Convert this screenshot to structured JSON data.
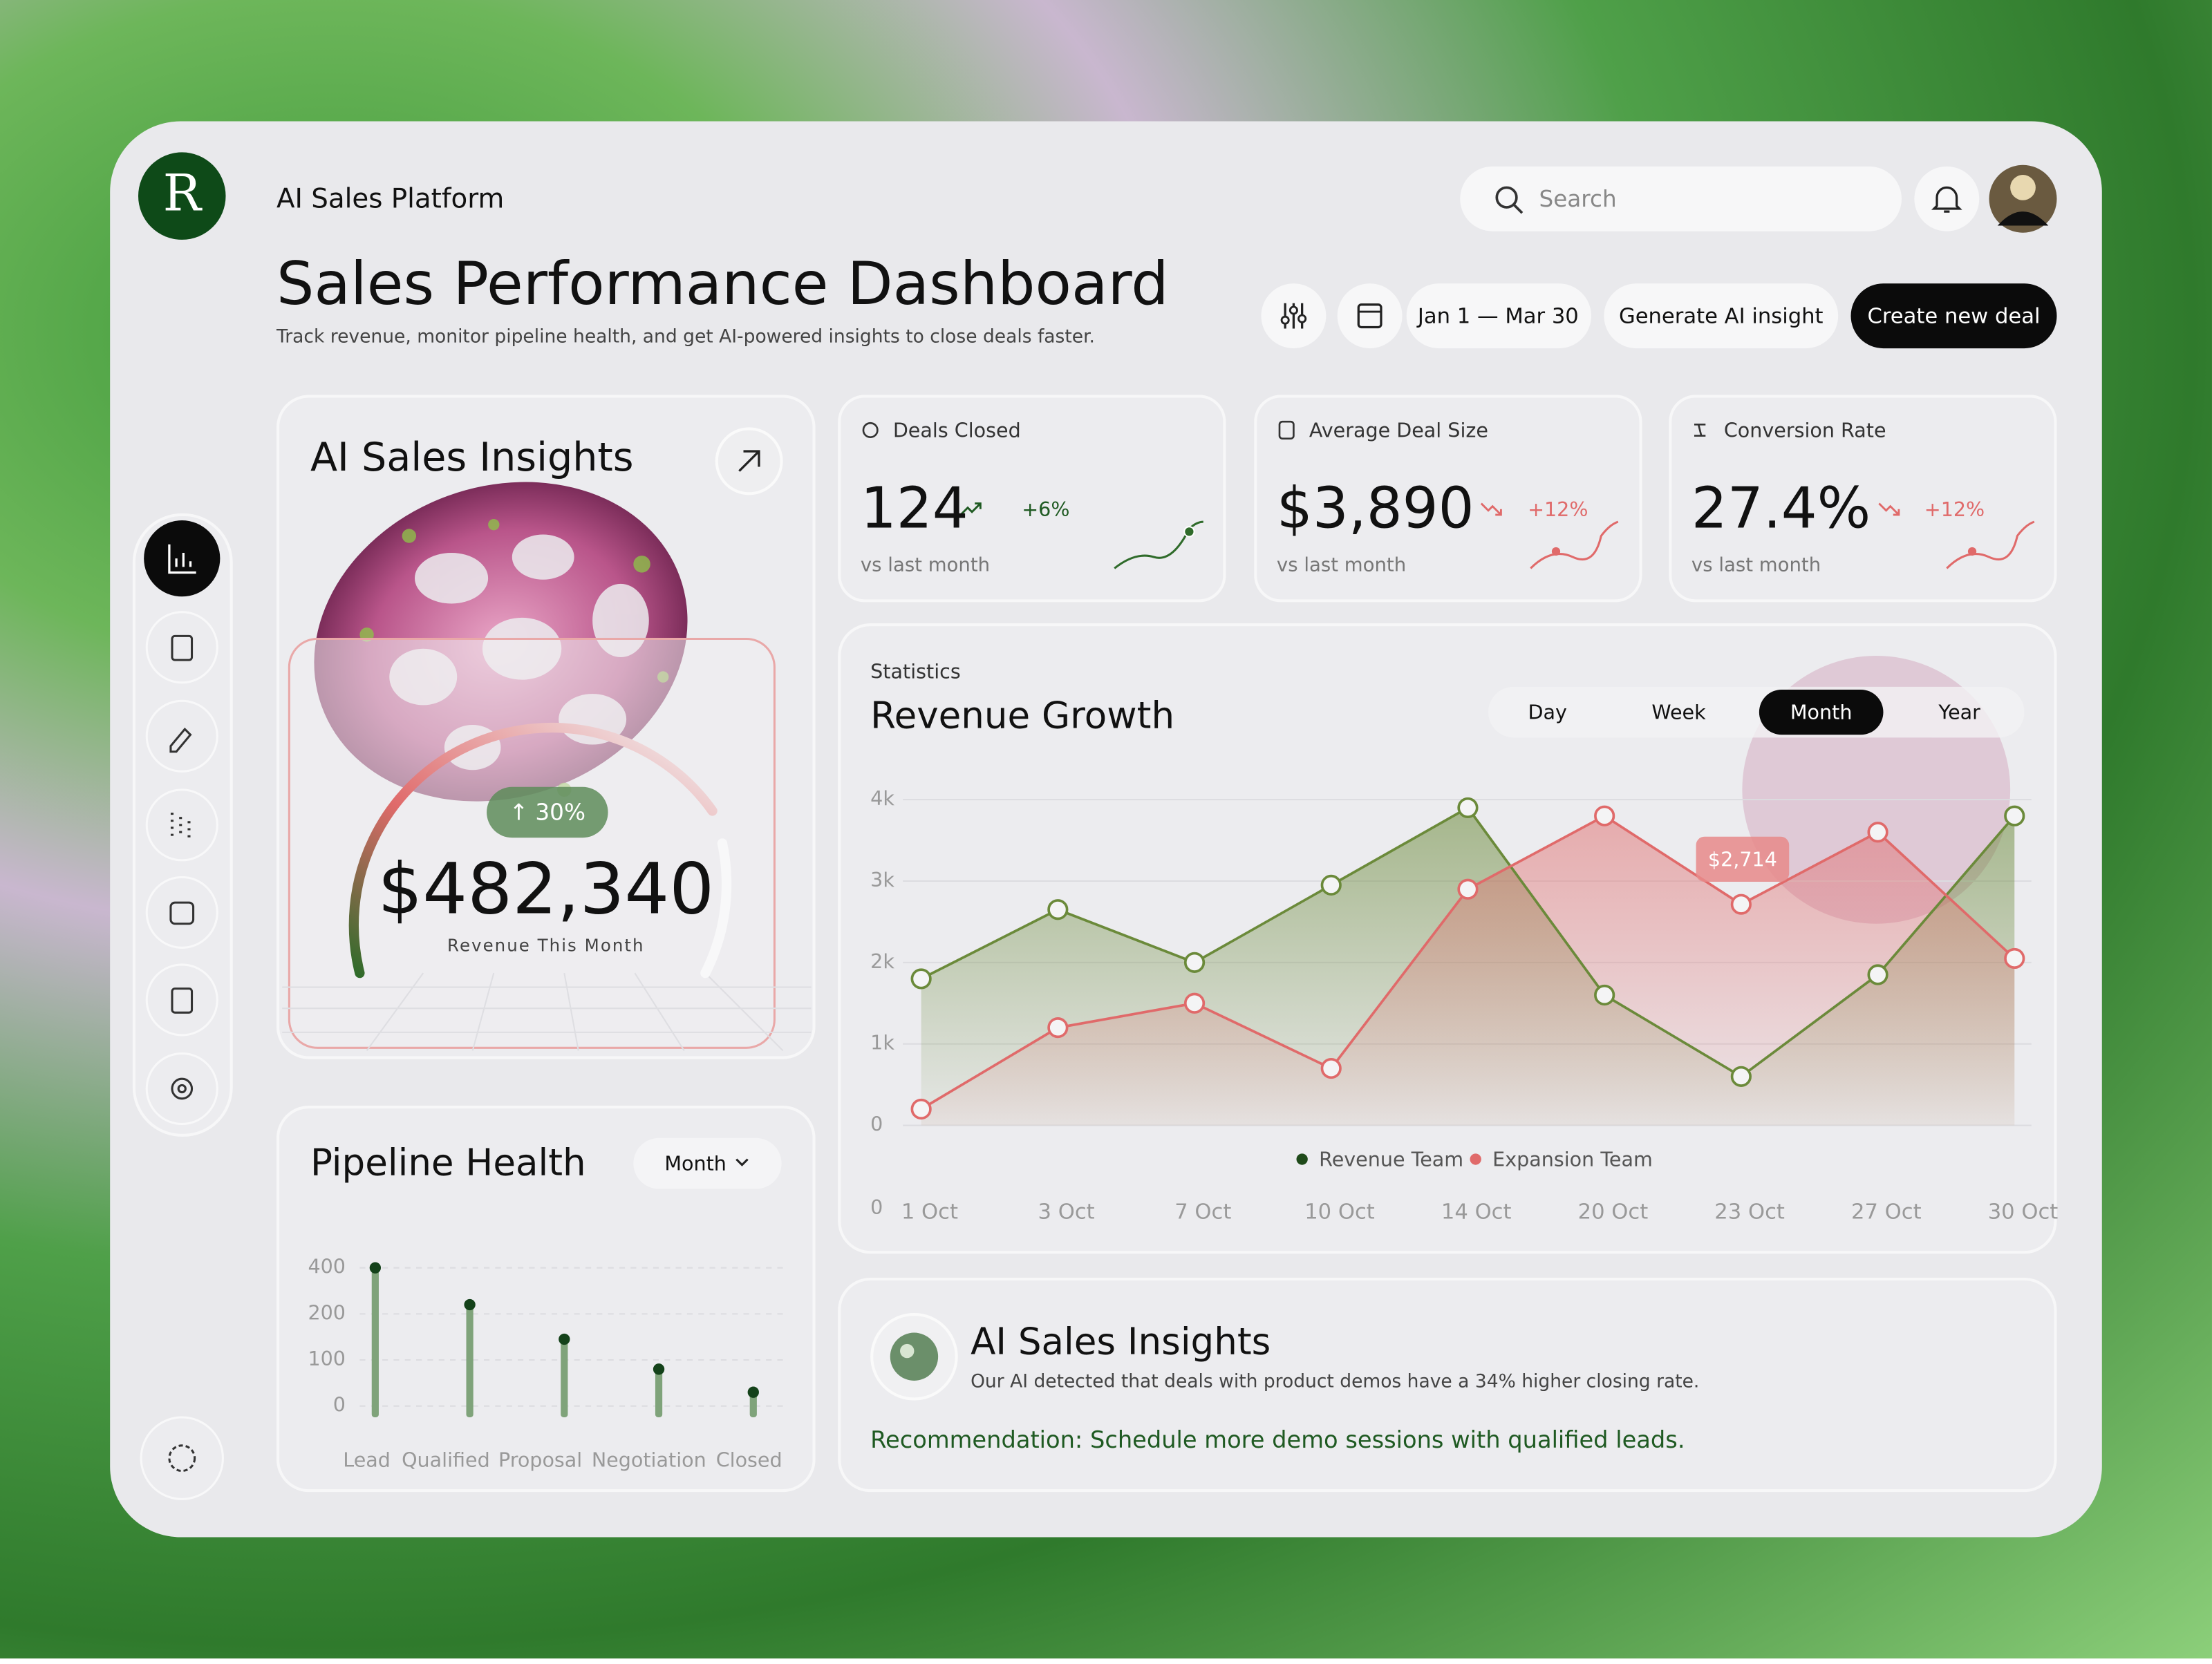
{
  "brand": {
    "logo": "R",
    "name": "AI Sales Platform"
  },
  "search": {
    "placeholder": "Search"
  },
  "header": {
    "title": "Sales Performance Dashboard",
    "subtitle": "Track revenue, monitor pipeline health, and get AI-powered insights to close deals faster.",
    "date_range": "Jan 1 — Mar 30",
    "buttons": [
      "Generate AI insight",
      "Create new deal"
    ]
  },
  "insight_card": {
    "title": "AI Sales Insights",
    "badge": "↑ 30%",
    "value": "$482,340",
    "caption": "Revenue This Month"
  },
  "kpis": [
    {
      "label": "Deals Closed",
      "value": "124",
      "change": "+6%",
      "note": "vs last month"
    },
    {
      "label": "Average Deal Size",
      "value": "$3,890",
      "change": "+12%",
      "note": "vs last month"
    },
    {
      "label": "Conversion Rate",
      "value": "27.4%",
      "change": "+12%",
      "note": "vs last month"
    }
  ],
  "chart_data": [
    {
      "type": "line",
      "subtitle": "Statistics",
      "title": "Revenue Growth",
      "tabs": [
        "Day",
        "Week",
        "Month",
        "Year"
      ],
      "active_tab": 2,
      "categories": [
        "1 Oct",
        "3 Oct",
        "7 Oct",
        "10 Oct",
        "14 Oct",
        "20 Oct",
        "23 Oct",
        "27 Oct",
        "30 Oct"
      ],
      "x_axis_start_label": "0",
      "series": [
        {
          "name": "Revenue Team",
          "color": "#6b8a3a",
          "values": [
            1800,
            2650,
            2000,
            2950,
            3900,
            1600,
            600,
            1850,
            3800
          ]
        },
        {
          "name": "Expansion Team",
          "color": "#e06a6a",
          "values": [
            200,
            1200,
            1500,
            700,
            2900,
            3800,
            2714,
            3600,
            2050
          ],
          "value_labels": [
            null,
            null,
            null,
            null,
            null,
            null,
            "$2,714",
            null,
            null
          ]
        }
      ],
      "ylim": [
        0,
        4000
      ],
      "yticks": [
        0,
        {
          "value": 1000,
          "label": "1k"
        },
        {
          "value": 2000,
          "label": "2k"
        },
        {
          "value": 3000,
          "label": "3k"
        },
        {
          "value": 4000,
          "label": "4k"
        }
      ],
      "grid": true,
      "legend": "bottom"
    },
    {
      "type": "bar",
      "title": "Pipeline Health",
      "period": "Month",
      "categories": [
        "Lead",
        "Qualified",
        "Proposal",
        "Negotiation",
        "Closed"
      ],
      "values": [
        400,
        240,
        145,
        80,
        30
      ],
      "color": "#7fa37a",
      "ylim": [
        0,
        400
      ],
      "yticks": [
        0,
        100,
        200,
        400
      ],
      "grid": true
    }
  ],
  "ai_banner": {
    "title": "AI Sales Insights",
    "text": "Our AI detected that deals with product demos have a 34% higher closing rate.",
    "recommendation": "Recommendation: Schedule more demo sessions with qualified leads."
  }
}
